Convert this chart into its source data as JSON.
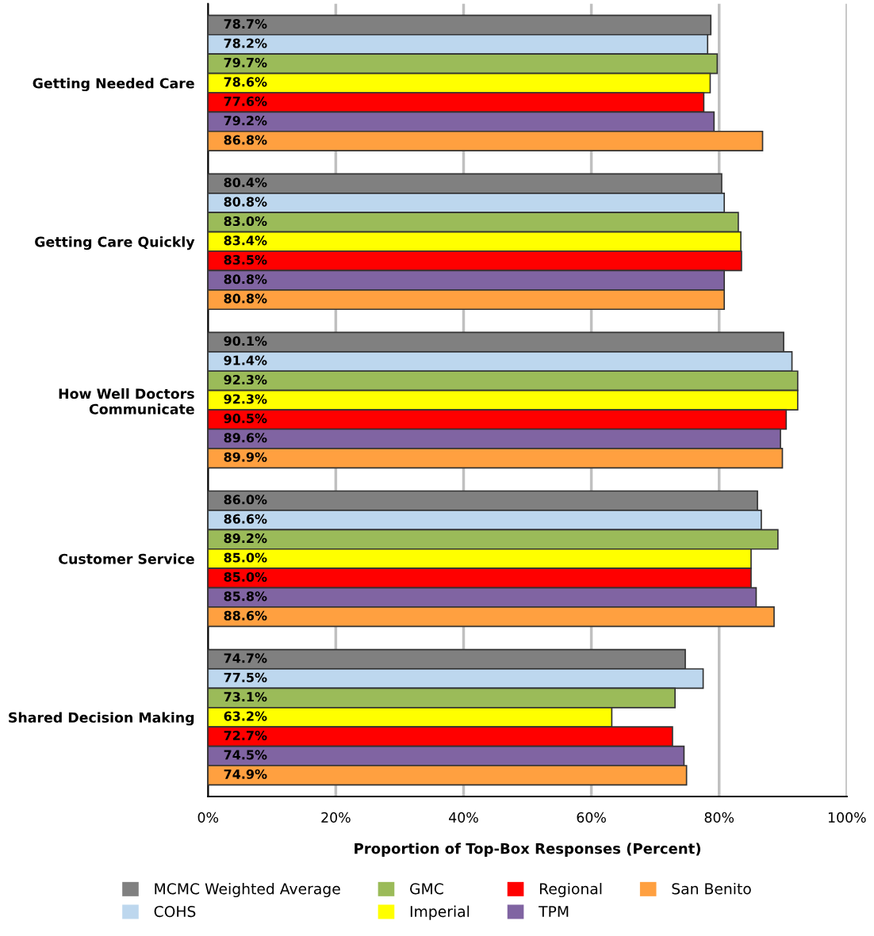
{
  "chart_data": {
    "type": "bar",
    "orientation": "horizontal",
    "categories": [
      "Getting Needed Care",
      "Getting Care Quickly",
      "How Well Doctors\nCommunicate",
      "Customer Service",
      "Shared Decision Making"
    ],
    "xlabel": "Proportion of Top-Box Responses (Percent)",
    "xlim": [
      0,
      100
    ],
    "xticks": [
      {
        "value": 0,
        "label": "0%"
      },
      {
        "value": 20,
        "label": "20%"
      },
      {
        "value": 40,
        "label": "40%"
      },
      {
        "value": 60,
        "label": "60%"
      },
      {
        "value": 80,
        "label": "80%"
      },
      {
        "value": 100,
        "label": "100%"
      }
    ],
    "grid": "x",
    "legend": "bottom",
    "series": [
      {
        "name": "MCMC Weighted Average",
        "color": "#808080",
        "values": [
          78.7,
          80.4,
          90.1,
          86.0,
          74.7
        ],
        "value_labels": [
          "78.7%",
          "80.4%",
          "90.1%",
          "86.0%",
          "74.7%"
        ]
      },
      {
        "name": "COHS",
        "color": "#bdd7ee",
        "values": [
          78.2,
          80.8,
          91.4,
          86.6,
          77.5
        ],
        "value_labels": [
          "78.2%",
          "80.8%",
          "91.4%",
          "86.6%",
          "77.5%"
        ]
      },
      {
        "name": "GMC",
        "color": "#9bbb59",
        "values": [
          79.7,
          83.0,
          92.3,
          89.2,
          73.1
        ],
        "value_labels": [
          "79.7%",
          "83.0%",
          "92.3%",
          "89.2%",
          "73.1%"
        ]
      },
      {
        "name": "Imperial",
        "color": "#ffff00",
        "values": [
          78.6,
          83.4,
          92.3,
          85.0,
          63.2
        ],
        "value_labels": [
          "78.6%",
          "83.4%",
          "92.3%",
          "85.0%",
          "63.2%"
        ]
      },
      {
        "name": "Regional",
        "color": "#ff0000",
        "values": [
          77.6,
          83.5,
          90.5,
          85.0,
          72.7
        ],
        "value_labels": [
          "77.6%",
          "83.5%",
          "90.5%",
          "85.0%",
          "72.7%"
        ]
      },
      {
        "name": "TPM",
        "color": "#8064a2",
        "values": [
          79.2,
          80.8,
          89.6,
          85.8,
          74.5
        ],
        "value_labels": [
          "79.2%",
          "80.8%",
          "89.6%",
          "85.8%",
          "74.5%"
        ]
      },
      {
        "name": "San Benito",
        "color": "#ffa040",
        "values": [
          86.8,
          80.8,
          89.9,
          88.6,
          74.9
        ],
        "value_labels": [
          "86.8%",
          "80.8%",
          "89.9%",
          "88.6%",
          "74.9%"
        ]
      }
    ]
  }
}
